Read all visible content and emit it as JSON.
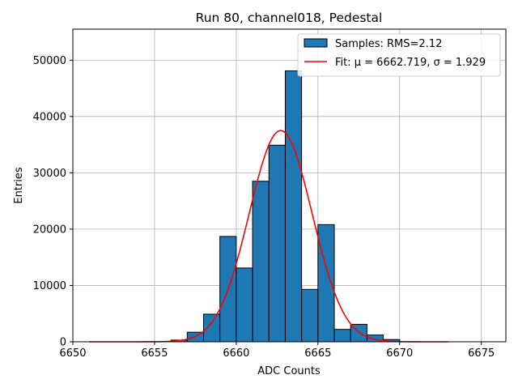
{
  "chart_data": {
    "type": "bar",
    "title": "Run 80, channel018, Pedestal",
    "xlabel": "ADC Counts",
    "ylabel": "Entries",
    "xlim": [
      6650,
      6676.5
    ],
    "ylim": [
      0,
      55500
    ],
    "xticks": [
      6650,
      6655,
      6660,
      6665,
      6670,
      6675
    ],
    "yticks": [
      0,
      10000,
      20000,
      30000,
      40000,
      50000
    ],
    "grid": true,
    "legend_position": "upper-right",
    "histogram": {
      "name": "Samples: RMS=2.12",
      "color": "#1f77b4",
      "edgecolor": "#000000",
      "bin_width": 1,
      "bins": [
        {
          "left": 6656,
          "value": 300
        },
        {
          "left": 6657,
          "value": 1700
        },
        {
          "left": 6658,
          "value": 4900
        },
        {
          "left": 6659,
          "value": 18700
        },
        {
          "left": 6660,
          "value": 13100
        },
        {
          "left": 6661,
          "value": 28500
        },
        {
          "left": 6662,
          "value": 34900
        },
        {
          "left": 6663,
          "value": 48100
        },
        {
          "left": 6664,
          "value": 9300
        },
        {
          "left": 6665,
          "value": 20800
        },
        {
          "left": 6666,
          "value": 2200
        },
        {
          "left": 6667,
          "value": 3100
        },
        {
          "left": 6668,
          "value": 1200
        },
        {
          "left": 6669,
          "value": 400
        }
      ]
    },
    "fit": {
      "name": "Fit: μ = 6662.719, σ = 1.929",
      "color": "#ff0000",
      "mu": 6662.719,
      "sigma": 1.929,
      "amplitude": 37500,
      "x_range": [
        6651,
        6673
      ]
    }
  }
}
